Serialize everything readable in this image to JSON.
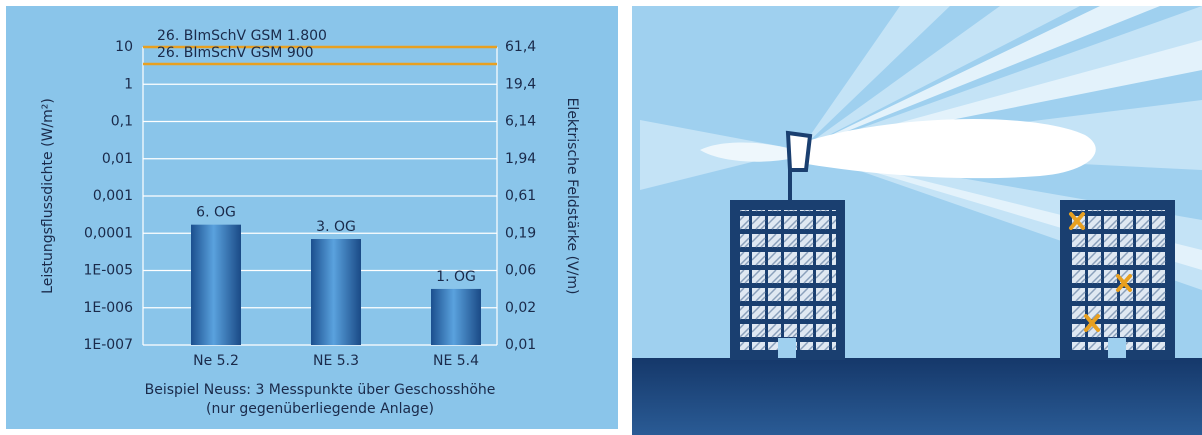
{
  "chart_data": {
    "type": "bar",
    "y_label": "Leistungsflussdichte (W/m²)",
    "y2_label": "Elektrische Feldstärke (V/m)",
    "note_lines": [
      "Beispiel Neuss: 3 Messpunkte über Geschosshöhe",
      "(nur gegenüberliegende Anlage)"
    ],
    "categories": [
      "Ne 5.2",
      "NE 5.3",
      "NE 5.4"
    ],
    "values": [
      0.00017,
      7e-05,
      3.2e-06
    ],
    "bar_labels": [
      "6. OG",
      "3. OG",
      "1. OG"
    ],
    "color": "#2a6aaa",
    "log_scale": true,
    "grid": true,
    "ylim": [
      1e-07,
      10
    ],
    "yticks": [
      10,
      1,
      {
        "value": 0.1,
        "label": "0,1"
      },
      {
        "value": 0.01,
        "label": "0,01"
      },
      {
        "value": 0.001,
        "label": "0,001"
      },
      {
        "value": 0.0001,
        "label": "0,0001"
      },
      {
        "value": 1e-05,
        "label": "1E-005"
      },
      {
        "value": 1e-06,
        "label": "1E-006"
      },
      {
        "value": 1e-07,
        "label": "1E-007"
      }
    ],
    "y2_tick_labels": [
      "61,4",
      "19,4",
      "6,14",
      "1,94",
      "0,61",
      "0,19",
      "0,06",
      "0,02",
      "0,01"
    ],
    "reference_lines": [
      {
        "label": "26. BImSchV GSM 1.800",
        "value": 10,
        "color": "#e8a020"
      },
      {
        "label": "26. BImSchV GSM 900",
        "value": 3.5,
        "color": "#e8a020"
      }
    ]
  }
}
